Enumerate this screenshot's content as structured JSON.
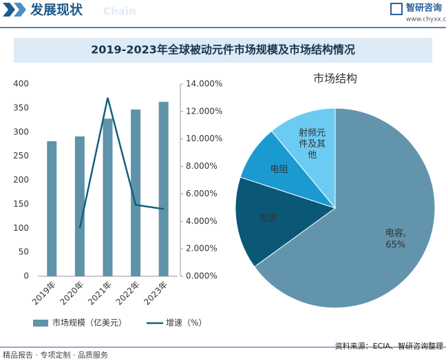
{
  "header": {
    "title": "发展现状",
    "subtitle": "Chain",
    "brand": "智研咨询",
    "url": "www.chyxx.com"
  },
  "title": "2019-2023年全球被动元件市场规模及市场结构情况",
  "chart_data": [
    {
      "type": "bar",
      "categories": [
        "2019年",
        "2020年",
        "2021年",
        "2022年",
        "2023年"
      ],
      "series": [
        {
          "name": "市场规模（亿美元）",
          "color": "#5f93a9",
          "values": [
            281,
            291,
            328,
            347,
            363
          ]
        },
        {
          "name": "增速（%）",
          "color": "#135f80",
          "axis": "y2",
          "values": [
            null,
            3.5,
            13.0,
            5.2,
            4.9
          ]
        }
      ],
      "ylim": [
        0,
        400
      ],
      "yticks": [
        0,
        50,
        100,
        150,
        200,
        250,
        300,
        350,
        400
      ],
      "y2lim": [
        0,
        14
      ],
      "y2ticks": [
        {
          "value": 0,
          "label": "0.000%"
        },
        {
          "value": 2,
          "label": "2.000%"
        },
        {
          "value": 4,
          "label": "4.000%"
        },
        {
          "value": 6,
          "label": "6.000%"
        },
        {
          "value": 8,
          "label": "8.000%"
        },
        {
          "value": 10,
          "label": "10.000%"
        },
        {
          "value": 12,
          "label": "12.000%"
        },
        {
          "value": 14,
          "label": "14.000%"
        }
      ]
    },
    {
      "type": "pie",
      "title": "市场结构",
      "categories": [
        "电容,",
        "电感",
        "电阻",
        "射频元件及其他"
      ],
      "values": [
        65,
        15,
        9,
        11
      ],
      "value_labels": [
        "65%",
        null,
        null,
        null
      ],
      "colors": [
        "#6394ad",
        "#0b5876",
        "#1a9ad0",
        "#6ccbf3"
      ]
    }
  ],
  "footer": {
    "left": "精品报告 · 专项定制 · 品质服务",
    "source": "资料来源：ECIA、智研咨询整理"
  }
}
